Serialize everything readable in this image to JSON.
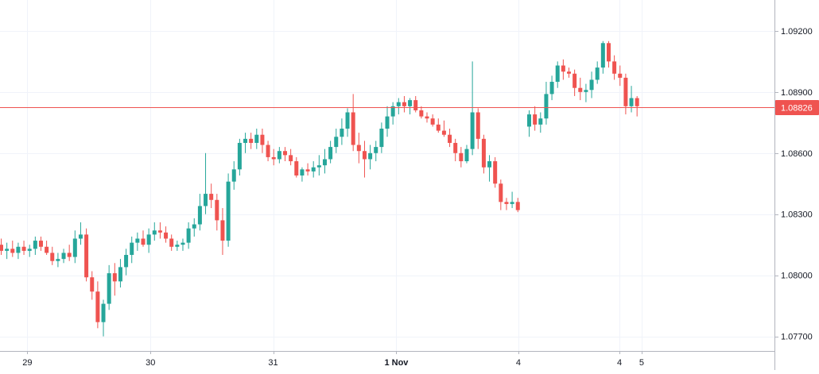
{
  "chart_data": {
    "type": "candlestick",
    "colors": {
      "up": "#26a69a",
      "down": "#ef5350",
      "grid": "#f0f3fa",
      "axis_line": "#b2b5be",
      "text": "#131722",
      "last_price": "#ef5350",
      "last_price_text": "#ffffff"
    },
    "ylim": [
      1.0764,
      1.0934
    ],
    "y_ticks": [
      "1.09200",
      "1.08900",
      "1.08600",
      "1.08300",
      "1.08000",
      "1.07700"
    ],
    "x_ticks": [
      {
        "label": "29",
        "bold": false,
        "bar": 4.6
      },
      {
        "label": "30",
        "bold": false,
        "bar": 26.3
      },
      {
        "label": "31",
        "bold": false,
        "bar": 47.9
      },
      {
        "label": "1 Nov",
        "bold": true,
        "bar": 69.6
      },
      {
        "label": "4",
        "bold": false,
        "bar": 91.1
      },
      {
        "label": "4",
        "bold": false,
        "bar": 108.9
      },
      {
        "label": "5",
        "bold": false,
        "bar": 112.8
      }
    ],
    "last_price": "1.08826",
    "bars": [
      [
        1.0815,
        1.0818,
        1.081,
        1.0812
      ],
      [
        1.0812,
        1.0816,
        1.0808,
        1.0813
      ],
      [
        1.0813,
        1.0817,
        1.0809,
        1.0811
      ],
      [
        1.0811,
        1.0816,
        1.0808,
        1.0814
      ],
      [
        1.0814,
        1.0817,
        1.081,
        1.0812
      ],
      [
        1.0812,
        1.0815,
        1.0809,
        1.0813
      ],
      [
        1.0813,
        1.0819,
        1.081,
        1.0817
      ],
      [
        1.0817,
        1.0819,
        1.0812,
        1.0814
      ],
      [
        1.0814,
        1.0817,
        1.081,
        1.0811
      ],
      [
        1.0811,
        1.0814,
        1.0805,
        1.0807
      ],
      [
        1.0807,
        1.0811,
        1.0804,
        1.0808
      ],
      [
        1.0808,
        1.0813,
        1.0806,
        1.0811
      ],
      [
        1.0811,
        1.0815,
        1.0807,
        1.0809
      ],
      [
        1.0809,
        1.0822,
        1.0806,
        1.0818
      ],
      [
        1.0818,
        1.0826,
        1.0815,
        1.082
      ],
      [
        1.082,
        1.0823,
        1.0797,
        1.0799
      ],
      [
        1.0799,
        1.0802,
        1.0788,
        1.0792
      ],
      [
        1.0792,
        1.0797,
        1.0774,
        1.0777
      ],
      [
        1.0777,
        1.0788,
        1.077,
        1.0786
      ],
      [
        1.0786,
        1.0805,
        1.0783,
        1.0801
      ],
      [
        1.0801,
        1.0806,
        1.079,
        1.0797
      ],
      [
        1.0797,
        1.0808,
        1.0794,
        1.0804
      ],
      [
        1.0804,
        1.0813,
        1.08,
        1.081
      ],
      [
        1.081,
        1.0819,
        1.0806,
        1.0816
      ],
      [
        1.0816,
        1.0821,
        1.0812,
        1.0818
      ],
      [
        1.0818,
        1.0822,
        1.0814,
        1.0815
      ],
      [
        1.0815,
        1.0823,
        1.0811,
        1.082
      ],
      [
        1.082,
        1.0826,
        1.0817,
        1.0822
      ],
      [
        1.0822,
        1.0826,
        1.0818,
        1.0821
      ],
      [
        1.0821,
        1.0824,
        1.0816,
        1.0818
      ],
      [
        1.0818,
        1.082,
        1.0812,
        1.0814
      ],
      [
        1.0814,
        1.0817,
        1.0812,
        1.0815
      ],
      [
        1.0815,
        1.0818,
        1.0812,
        1.0816
      ],
      [
        1.0816,
        1.0826,
        1.0813,
        1.0823
      ],
      [
        1.0823,
        1.0828,
        1.0819,
        1.0825
      ],
      [
        1.0825,
        1.084,
        1.0822,
        1.0834
      ],
      [
        1.0834,
        1.086,
        1.083,
        1.084
      ],
      [
        1.084,
        1.0845,
        1.0833,
        1.0837
      ],
      [
        1.0837,
        1.084,
        1.0822,
        1.0827
      ],
      [
        1.0827,
        1.0833,
        1.081,
        1.0817
      ],
      [
        1.0817,
        1.085,
        1.0814,
        1.0846
      ],
      [
        1.0846,
        1.0856,
        1.0842,
        1.0852
      ],
      [
        1.0852,
        1.0867,
        1.0849,
        1.0865
      ],
      [
        1.0865,
        1.087,
        1.086,
        1.0867
      ],
      [
        1.0867,
        1.087,
        1.0862,
        1.0865
      ],
      [
        1.0865,
        1.0872,
        1.0862,
        1.0869
      ],
      [
        1.0869,
        1.0872,
        1.086,
        1.0864
      ],
      [
        1.0864,
        1.0866,
        1.0856,
        1.0858
      ],
      [
        1.0858,
        1.0862,
        1.0854,
        1.0857
      ],
      [
        1.0857,
        1.0863,
        1.0855,
        1.0861
      ],
      [
        1.0861,
        1.0863,
        1.0856,
        1.0859
      ],
      [
        1.0859,
        1.0862,
        1.0854,
        1.0856
      ],
      [
        1.0856,
        1.0858,
        1.0848,
        1.0849
      ],
      [
        1.0849,
        1.0853,
        1.0846,
        1.0852
      ],
      [
        1.0852,
        1.0855,
        1.0849,
        1.0851
      ],
      [
        1.0851,
        1.0856,
        1.0848,
        1.0853
      ],
      [
        1.0853,
        1.0859,
        1.0849,
        1.0854
      ],
      [
        1.0854,
        1.0862,
        1.085,
        1.0857
      ],
      [
        1.0857,
        1.0866,
        1.0855,
        1.0863
      ],
      [
        1.0863,
        1.0872,
        1.086,
        1.0868
      ],
      [
        1.0868,
        1.0877,
        1.0864,
        1.0872
      ],
      [
        1.0872,
        1.0882,
        1.0868,
        1.088
      ],
      [
        1.088,
        1.0889,
        1.0861,
        1.0864
      ],
      [
        1.0864,
        1.087,
        1.0855,
        1.0861
      ],
      [
        1.0861,
        1.0866,
        1.0848,
        1.0857
      ],
      [
        1.0857,
        1.0864,
        1.0852,
        1.086
      ],
      [
        1.086,
        1.0866,
        1.0856,
        1.0863
      ],
      [
        1.0863,
        1.0875,
        1.086,
        1.0872
      ],
      [
        1.0872,
        1.0883,
        1.0868,
        1.0878
      ],
      [
        1.0878,
        1.0885,
        1.0874,
        1.0883
      ],
      [
        1.0883,
        1.0887,
        1.0879,
        1.0885
      ],
      [
        1.0885,
        1.0888,
        1.088,
        1.0883
      ],
      [
        1.0883,
        1.0887,
        1.0879,
        1.0886
      ],
      [
        1.0886,
        1.0888,
        1.088,
        1.0881
      ],
      [
        1.0881,
        1.0883,
        1.0877,
        1.0878
      ],
      [
        1.0878,
        1.088,
        1.0875,
        1.0877
      ],
      [
        1.0877,
        1.0879,
        1.0873,
        1.0874
      ],
      [
        1.0874,
        1.0877,
        1.087,
        1.0871
      ],
      [
        1.0871,
        1.0876,
        1.0868,
        1.0869
      ],
      [
        1.0869,
        1.0872,
        1.0863,
        1.0865
      ],
      [
        1.0865,
        1.0867,
        1.0856,
        1.086
      ],
      [
        1.086,
        1.0863,
        1.0853,
        1.0856
      ],
      [
        1.0856,
        1.0864,
        1.0855,
        1.0862
      ],
      [
        1.0862,
        1.0905,
        1.0859,
        1.088
      ],
      [
        1.088,
        1.0882,
        1.0862,
        1.0867
      ],
      [
        1.0867,
        1.0869,
        1.085,
        1.0853
      ],
      [
        1.0853,
        1.0859,
        1.0846,
        1.0856
      ],
      [
        1.0856,
        1.0858,
        1.0843,
        1.0845
      ],
      [
        1.0845,
        1.0847,
        1.0832,
        1.0836
      ],
      [
        1.0836,
        1.0838,
        1.0832,
        1.0835
      ],
      [
        1.0835,
        1.0841,
        1.0833,
        1.0836
      ],
      [
        1.0836,
        1.0838,
        1.0831,
        1.0832
      ],
      null,
      [
        1.0873,
        1.0881,
        1.0868,
        1.0879
      ],
      [
        1.0879,
        1.0883,
        1.0871,
        1.0874
      ],
      [
        1.0874,
        1.088,
        1.087,
        1.0877
      ],
      [
        1.0877,
        1.0895,
        1.0874,
        1.0889
      ],
      [
        1.0889,
        1.0898,
        1.0886,
        1.0895
      ],
      [
        1.0895,
        1.0905,
        1.0892,
        1.0903
      ],
      [
        1.0903,
        1.0906,
        1.0896,
        1.09
      ],
      [
        1.09,
        1.0902,
        1.0897,
        1.0899
      ],
      [
        1.0899,
        1.0901,
        1.0888,
        1.0892
      ],
      [
        1.0892,
        1.0897,
        1.0886,
        1.089
      ],
      [
        1.089,
        1.0894,
        1.0885,
        1.0891
      ],
      [
        1.0891,
        1.09,
        1.0887,
        1.0896
      ],
      [
        1.0896,
        1.0905,
        1.0894,
        1.0902
      ],
      [
        1.0902,
        1.0915,
        1.0899,
        1.0914
      ],
      [
        1.0914,
        1.0915,
        1.0902,
        1.0905
      ],
      [
        1.0905,
        1.0908,
        1.0896,
        1.0899
      ],
      [
        1.0899,
        1.0903,
        1.0893,
        1.0897
      ],
      [
        1.0897,
        1.0899,
        1.0879,
        1.0883
      ],
      [
        1.0883,
        1.0893,
        1.088,
        1.0887
      ],
      [
        1.0887,
        1.0888,
        1.0878,
        1.0883
      ]
    ]
  }
}
